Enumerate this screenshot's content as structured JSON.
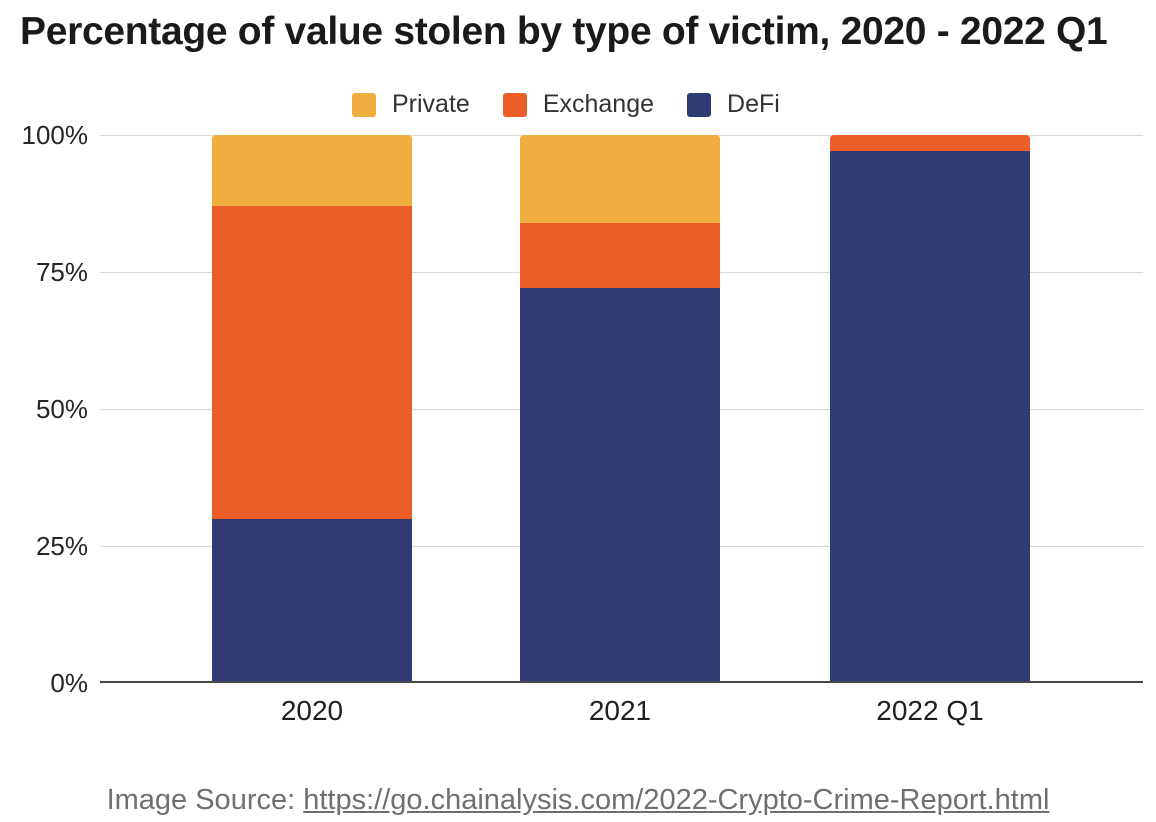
{
  "chart": {
    "title": "Percentage of value stolen by type of victim, 2020 - 2022 Q1"
  },
  "chart_data": {
    "type": "bar",
    "subtype": "stacked-percentage",
    "title": "Percentage of value stolen by type of victim, 2020 - 2022 Q1",
    "categories": [
      "2020",
      "2021",
      "2022 Q1"
    ],
    "series": [
      {
        "name": "DeFi",
        "color": "#2F3B72",
        "values": [
          30,
          72,
          97
        ]
      },
      {
        "name": "Exchange",
        "color": "#EB5E28",
        "values": [
          57,
          12,
          3
        ]
      },
      {
        "name": "Private",
        "color": "#EFAE3F",
        "values": [
          13,
          16,
          0
        ]
      }
    ],
    "legend": [
      {
        "label": "Private",
        "color": "#EFAE3F"
      },
      {
        "label": "Exchange",
        "color": "#EB5E28"
      },
      {
        "label": "DeFi",
        "color": "#2F3B72"
      }
    ],
    "legend_position": "top",
    "grid": true,
    "ylim": [
      0,
      100
    ],
    "y_ticks": [
      {
        "label": "100%",
        "value": 100
      },
      {
        "label": "75%",
        "value": 75
      },
      {
        "label": "50%",
        "value": 50
      },
      {
        "label": "25%",
        "value": 25
      },
      {
        "label": "0%",
        "value": 0
      }
    ]
  },
  "footer": {
    "prefix": "Image Source: ",
    "link_text": "https://go.chainalysis.com/2022-Crypto-Crime-Report.html"
  },
  "colors": {
    "private": "#EFAE3F",
    "exchange": "#EB5E28",
    "defi": "#2F3B72",
    "gridline": "#D9D9D9",
    "axis_line": "#474747",
    "footer_text": "#6F6F6F"
  }
}
